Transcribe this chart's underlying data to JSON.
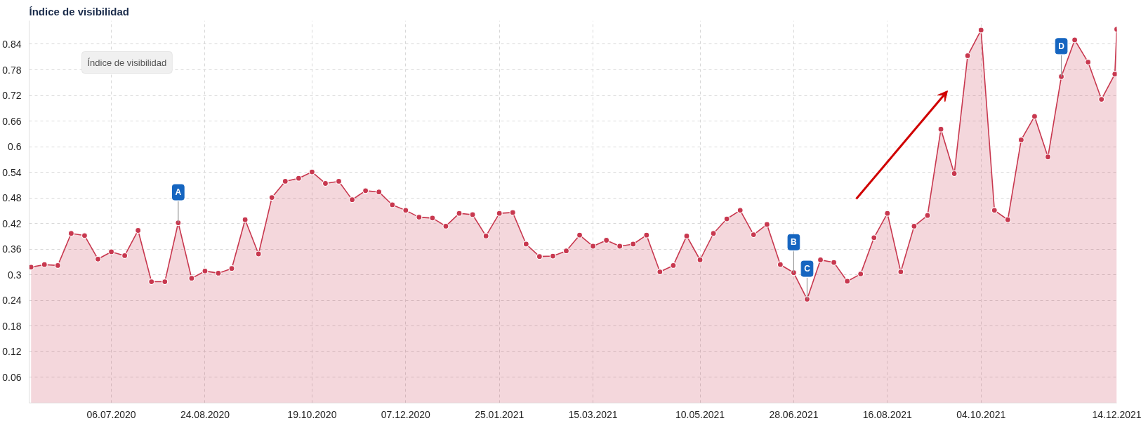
{
  "chart_data": {
    "type": "area",
    "title": "Índice de visibilidad",
    "x": [
      "2020-05-25",
      "2020-06-01",
      "2020-06-08",
      "2020-06-15",
      "2020-06-22",
      "2020-06-29",
      "2020-07-06",
      "2020-07-13",
      "2020-07-20",
      "2020-07-27",
      "2020-08-03",
      "2020-08-10",
      "2020-08-17",
      "2020-08-24",
      "2020-08-31",
      "2020-09-07",
      "2020-09-14",
      "2020-09-21",
      "2020-09-28",
      "2020-10-05",
      "2020-10-12",
      "2020-10-19",
      "2020-10-26",
      "2020-11-02",
      "2020-11-09",
      "2020-11-16",
      "2020-11-23",
      "2020-11-30",
      "2020-12-07",
      "2020-12-14",
      "2020-12-21",
      "2020-12-28",
      "2021-01-04",
      "2021-01-11",
      "2021-01-18",
      "2021-01-25",
      "2021-02-01",
      "2021-02-08",
      "2021-02-15",
      "2021-02-22",
      "2021-03-01",
      "2021-03-08",
      "2021-03-15",
      "2021-03-22",
      "2021-03-29",
      "2021-04-05",
      "2021-04-12",
      "2021-04-19",
      "2021-04-26",
      "2021-05-03",
      "2021-05-10",
      "2021-05-17",
      "2021-05-24",
      "2021-05-31",
      "2021-06-07",
      "2021-06-14",
      "2021-06-21",
      "2021-06-28",
      "2021-07-05",
      "2021-07-12",
      "2021-07-19",
      "2021-07-26",
      "2021-08-02",
      "2021-08-09",
      "2021-08-16",
      "2021-08-23",
      "2021-08-30",
      "2021-09-06",
      "2021-09-13",
      "2021-09-20",
      "2021-09-27",
      "2021-10-04",
      "2021-10-11",
      "2021-10-18",
      "2021-10-25",
      "2021-11-01",
      "2021-11-08",
      "2021-11-15",
      "2021-11-22",
      "2021-11-29",
      "2021-12-06",
      "2021-12-13",
      "2021-12-14"
    ],
    "series": [
      {
        "color": "#c8384f",
        "values": [
          0.318,
          0.324,
          0.322,
          0.397,
          0.392,
          0.337,
          0.354,
          0.345,
          0.404,
          0.284,
          0.284,
          0.422,
          0.292,
          0.309,
          0.304,
          0.315,
          0.429,
          0.349,
          0.481,
          0.519,
          0.526,
          0.541,
          0.514,
          0.519,
          0.476,
          0.497,
          0.494,
          0.464,
          0.451,
          0.435,
          0.433,
          0.414,
          0.444,
          0.441,
          0.391,
          0.444,
          0.446,
          0.372,
          0.343,
          0.344,
          0.356,
          0.393,
          0.367,
          0.381,
          0.367,
          0.372,
          0.393,
          0.307,
          0.322,
          0.391,
          0.335,
          0.397,
          0.431,
          0.451,
          0.394,
          0.418,
          0.324,
          0.305,
          0.243,
          0.335,
          0.329,
          0.285,
          0.302,
          0.387,
          0.444,
          0.307,
          0.414,
          0.439,
          0.641,
          0.537,
          0.813,
          0.873,
          0.451,
          0.429,
          0.616,
          0.671,
          0.576,
          0.764,
          0.85,
          0.798,
          0.711,
          0.77,
          0.875
        ]
      }
    ],
    "xlim": [
      "2020-05-24",
      "2021-12-14"
    ],
    "ylim": [
      0,
      0.895
    ],
    "xticks": [
      {
        "value": "2020-07-06",
        "label": "06.07.2020"
      },
      {
        "value": "2020-08-24",
        "label": "24.08.2020"
      },
      {
        "value": "2020-10-19",
        "label": "19.10.2020"
      },
      {
        "value": "2020-12-07",
        "label": "07.12.2020"
      },
      {
        "value": "2021-01-25",
        "label": "25.01.2021"
      },
      {
        "value": "2021-03-15",
        "label": "15.03.2021"
      },
      {
        "value": "2021-05-10",
        "label": "10.05.2021"
      },
      {
        "value": "2021-06-28",
        "label": "28.06.2021"
      },
      {
        "value": "2021-08-16",
        "label": "16.08.2021"
      },
      {
        "value": "2021-10-04",
        "label": "04.10.2021"
      },
      {
        "value": "2021-12-14",
        "label": "14.12.2021"
      }
    ],
    "yticks": [
      0.06,
      0.12,
      0.18,
      0.24,
      {
        "value": 0.3,
        "label": "0.3"
      },
      0.36,
      0.42,
      0.48,
      0.54,
      {
        "value": 0.6,
        "label": "0.6"
      },
      0.66,
      0.72,
      0.78,
      0.84
    ],
    "grid": true,
    "marker": "circle",
    "line_style": "solid",
    "annotations": [
      "Índice de visibilidad",
      {
        "text": "A",
        "x": "2020-08-10",
        "y": 0.422
      },
      {
        "text": "B",
        "x": "2021-06-28",
        "y": 0.305
      },
      {
        "text": "C",
        "x": "2021-07-05",
        "y": 0.243
      },
      {
        "text": "D",
        "x": "2021-11-15",
        "y": 0.764
      }
    ]
  }
}
